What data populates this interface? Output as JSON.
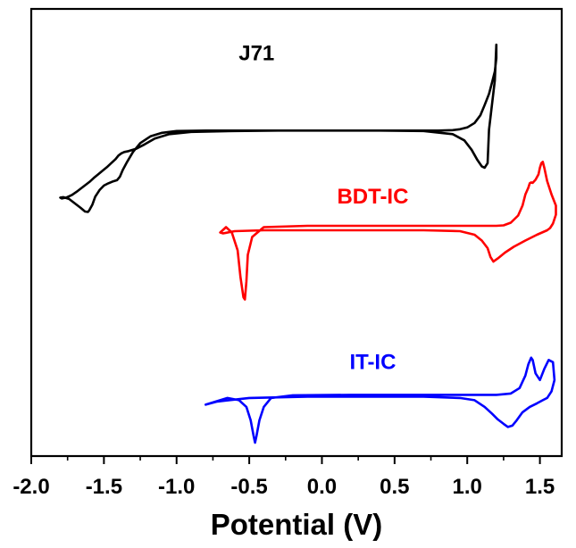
{
  "chart_data": {
    "type": "line",
    "title": "",
    "xlabel": "Potential (V)",
    "ylabel": "",
    "xlim": [
      -2.0,
      1.65
    ],
    "ylim": [
      0,
      10
    ],
    "x_ticks": [
      "-2.0",
      "-1.5",
      "-1.0",
      "-0.5",
      "0.0",
      "0.5",
      "1.0",
      "1.5"
    ],
    "x_tick_values": [
      -2.0,
      -1.5,
      -1.0,
      -0.5,
      0.0,
      0.5,
      1.0,
      1.5
    ],
    "y_ticks_visible": false,
    "grid": false,
    "legend": "none (series labelled inline)",
    "series": [
      {
        "name": "J71",
        "color": "#000000",
        "label_at": [
          -0.45,
          8.85
        ],
        "x": [
          1.15,
          1.19,
          1.2,
          1.2,
          1.19,
          1.17,
          1.15,
          1.12,
          1.09,
          1.05,
          1.0,
          0.95,
          0.9,
          0.8,
          0.6,
          0.3,
          0.0,
          -0.3,
          -0.6,
          -0.9,
          -1.05,
          -1.15,
          -1.22,
          -1.28,
          -1.33,
          -1.36,
          -1.38,
          -1.4,
          -1.42,
          -1.45,
          -1.48,
          -1.51,
          -1.54,
          -1.57,
          -1.6,
          -1.64,
          -1.68,
          -1.72,
          -1.76,
          -1.79,
          -1.8,
          -1.78,
          -1.74,
          -1.7,
          -1.66,
          -1.63,
          -1.61,
          -1.6,
          -1.58,
          -1.56,
          -1.53,
          -1.5,
          -1.47,
          -1.44,
          -1.41,
          -1.39,
          -1.37,
          -1.34,
          -1.3,
          -1.25,
          -1.18,
          -1.1,
          -1.0,
          -0.8,
          -0.5,
          -0.2,
          0.1,
          0.4,
          0.7,
          0.9,
          0.98,
          1.03,
          1.07,
          1.1,
          1.12,
          1.14,
          1.15
        ],
        "y": [
          7.3,
          8.4,
          9.2,
          8.9,
          8.6,
          8.35,
          8.1,
          7.85,
          7.62,
          7.45,
          7.35,
          7.31,
          7.29,
          7.28,
          7.28,
          7.28,
          7.28,
          7.28,
          7.27,
          7.25,
          7.2,
          7.1,
          6.97,
          6.87,
          6.82,
          6.8,
          6.77,
          6.72,
          6.64,
          6.55,
          6.46,
          6.38,
          6.3,
          6.22,
          6.13,
          6.03,
          5.93,
          5.84,
          5.78,
          5.76,
          5.78,
          5.79,
          5.75,
          5.65,
          5.55,
          5.47,
          5.46,
          5.5,
          5.62,
          5.8,
          5.95,
          6.05,
          6.1,
          6.14,
          6.17,
          6.25,
          6.4,
          6.58,
          6.8,
          7.0,
          7.15,
          7.23,
          7.27,
          7.28,
          7.28,
          7.28,
          7.28,
          7.28,
          7.27,
          7.2,
          7.06,
          6.85,
          6.62,
          6.48,
          6.45,
          6.55,
          7.3
        ]
      },
      {
        "name": "BDT-IC",
        "color": "#ff0000",
        "label_at": [
          0.35,
          5.65
        ],
        "x": [
          1.55,
          1.57,
          1.59,
          1.61,
          1.61,
          1.58,
          1.55,
          1.53,
          1.52,
          1.51,
          1.5,
          1.49,
          1.47,
          1.45,
          1.44,
          1.43,
          1.42,
          1.4,
          1.38,
          1.35,
          1.3,
          1.25,
          1.2,
          1.15,
          1.0,
          0.7,
          0.3,
          -0.1,
          -0.4,
          -0.48,
          -0.51,
          -0.52,
          -0.53,
          -0.54,
          -0.56,
          -0.58,
          -0.62,
          -0.66,
          -0.7,
          -0.68,
          -0.6,
          -0.4,
          0.0,
          0.4,
          0.7,
          0.95,
          1.05,
          1.1,
          1.14,
          1.16,
          1.18,
          1.21,
          1.26,
          1.32,
          1.4,
          1.48,
          1.55
        ],
        "y": [
          5.05,
          5.1,
          5.2,
          5.4,
          5.6,
          5.85,
          6.15,
          6.45,
          6.58,
          6.55,
          6.45,
          6.3,
          6.18,
          6.11,
          6.12,
          6.1,
          6.0,
          5.85,
          5.6,
          5.38,
          5.22,
          5.16,
          5.15,
          5.15,
          5.15,
          5.15,
          5.15,
          5.15,
          5.12,
          4.9,
          4.5,
          3.9,
          3.5,
          3.55,
          4.0,
          4.6,
          5.0,
          5.12,
          5.0,
          4.98,
          5.03,
          5.05,
          5.05,
          5.05,
          5.05,
          5.03,
          4.95,
          4.82,
          4.65,
          4.45,
          4.35,
          4.42,
          4.55,
          4.68,
          4.82,
          4.95,
          5.05
        ]
      },
      {
        "name": "IT-IC",
        "color": "#0000ff",
        "label_at": [
          0.35,
          1.95
        ],
        "x": [
          1.52,
          1.55,
          1.58,
          1.6,
          1.59,
          1.56,
          1.53,
          1.5,
          1.47,
          1.45,
          1.44,
          1.42,
          1.4,
          1.36,
          1.3,
          1.2,
          1.0,
          0.6,
          0.2,
          -0.2,
          -0.35,
          -0.4,
          -0.43,
          -0.45,
          -0.46,
          -0.47,
          -0.49,
          -0.52,
          -0.57,
          -0.65,
          -0.75,
          -0.8,
          -0.72,
          -0.5,
          -0.1,
          0.3,
          0.7,
          0.95,
          1.05,
          1.12,
          1.17,
          1.21,
          1.25,
          1.28,
          1.31,
          1.34,
          1.38,
          1.43,
          1.48,
          1.52
        ],
        "y": [
          1.25,
          1.3,
          1.45,
          1.7,
          2.1,
          2.15,
          1.95,
          1.7,
          1.85,
          2.15,
          2.2,
          2.05,
          1.8,
          1.52,
          1.4,
          1.37,
          1.37,
          1.37,
          1.37,
          1.36,
          1.3,
          1.1,
          0.8,
          0.45,
          0.3,
          0.45,
          0.8,
          1.1,
          1.25,
          1.3,
          1.2,
          1.15,
          1.22,
          1.3,
          1.33,
          1.33,
          1.33,
          1.3,
          1.25,
          1.1,
          0.95,
          0.82,
          0.72,
          0.65,
          0.68,
          0.8,
          0.98,
          1.1,
          1.18,
          1.25
        ]
      }
    ]
  }
}
